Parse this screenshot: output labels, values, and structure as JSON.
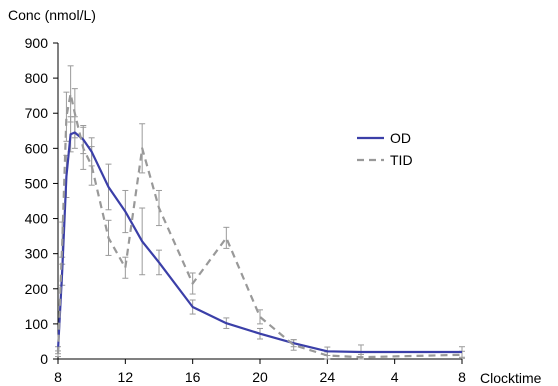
{
  "chart_data": {
    "type": "line",
    "ylabel": "Conc (nmol/L)",
    "xlabel": "Clocktime",
    "ylim": [
      0,
      900
    ],
    "y_ticks": [
      0,
      100,
      200,
      300,
      400,
      500,
      600,
      700,
      800,
      900
    ],
    "x_ticks": [
      "8",
      "12",
      "16",
      "20",
      "24",
      "4",
      "8"
    ],
    "grid": false,
    "legend_position": "right",
    "series": [
      {
        "name": "OD",
        "color": "#3b3fa8",
        "style": "solid",
        "x": [
          "08:00",
          "08:15",
          "08:30",
          "08:45",
          "09:00",
          "09:30",
          "10:00",
          "11:00",
          "12:00",
          "13:00",
          "14:00",
          "16:00",
          "18:00",
          "20:00",
          "22:00",
          "24:00",
          "02:00",
          "08:00 (+1 day)"
        ],
        "values": [
          25,
          250,
          520,
          640,
          645,
          625,
          590,
          490,
          420,
          335,
          275,
          148,
          102,
          72,
          45,
          22,
          20,
          20
        ],
        "errors": [
          10,
          40,
          60,
          50,
          45,
          40,
          40,
          65,
          60,
          95,
          35,
          20,
          15,
          15,
          10,
          12,
          20,
          15
        ]
      },
      {
        "name": "TID",
        "color": "#999999",
        "style": "dashed",
        "x": [
          "08:00",
          "08:15",
          "08:30",
          "08:45",
          "09:00",
          "09:30",
          "10:00",
          "11:00",
          "12:00",
          "13:00",
          "14:00",
          "16:00",
          "18:00",
          "20:00",
          "22:00",
          "24:00",
          "02:00",
          "08:00 (+1 day)"
        ],
        "values": [
          15,
          330,
          690,
          755,
          700,
          600,
          550,
          345,
          260,
          600,
          430,
          215,
          345,
          120,
          40,
          10,
          5,
          12
        ],
        "errors": [
          8,
          60,
          70,
          80,
          70,
          60,
          55,
          50,
          30,
          70,
          50,
          30,
          30,
          20,
          15,
          10,
          8,
          10
        ]
      }
    ]
  }
}
